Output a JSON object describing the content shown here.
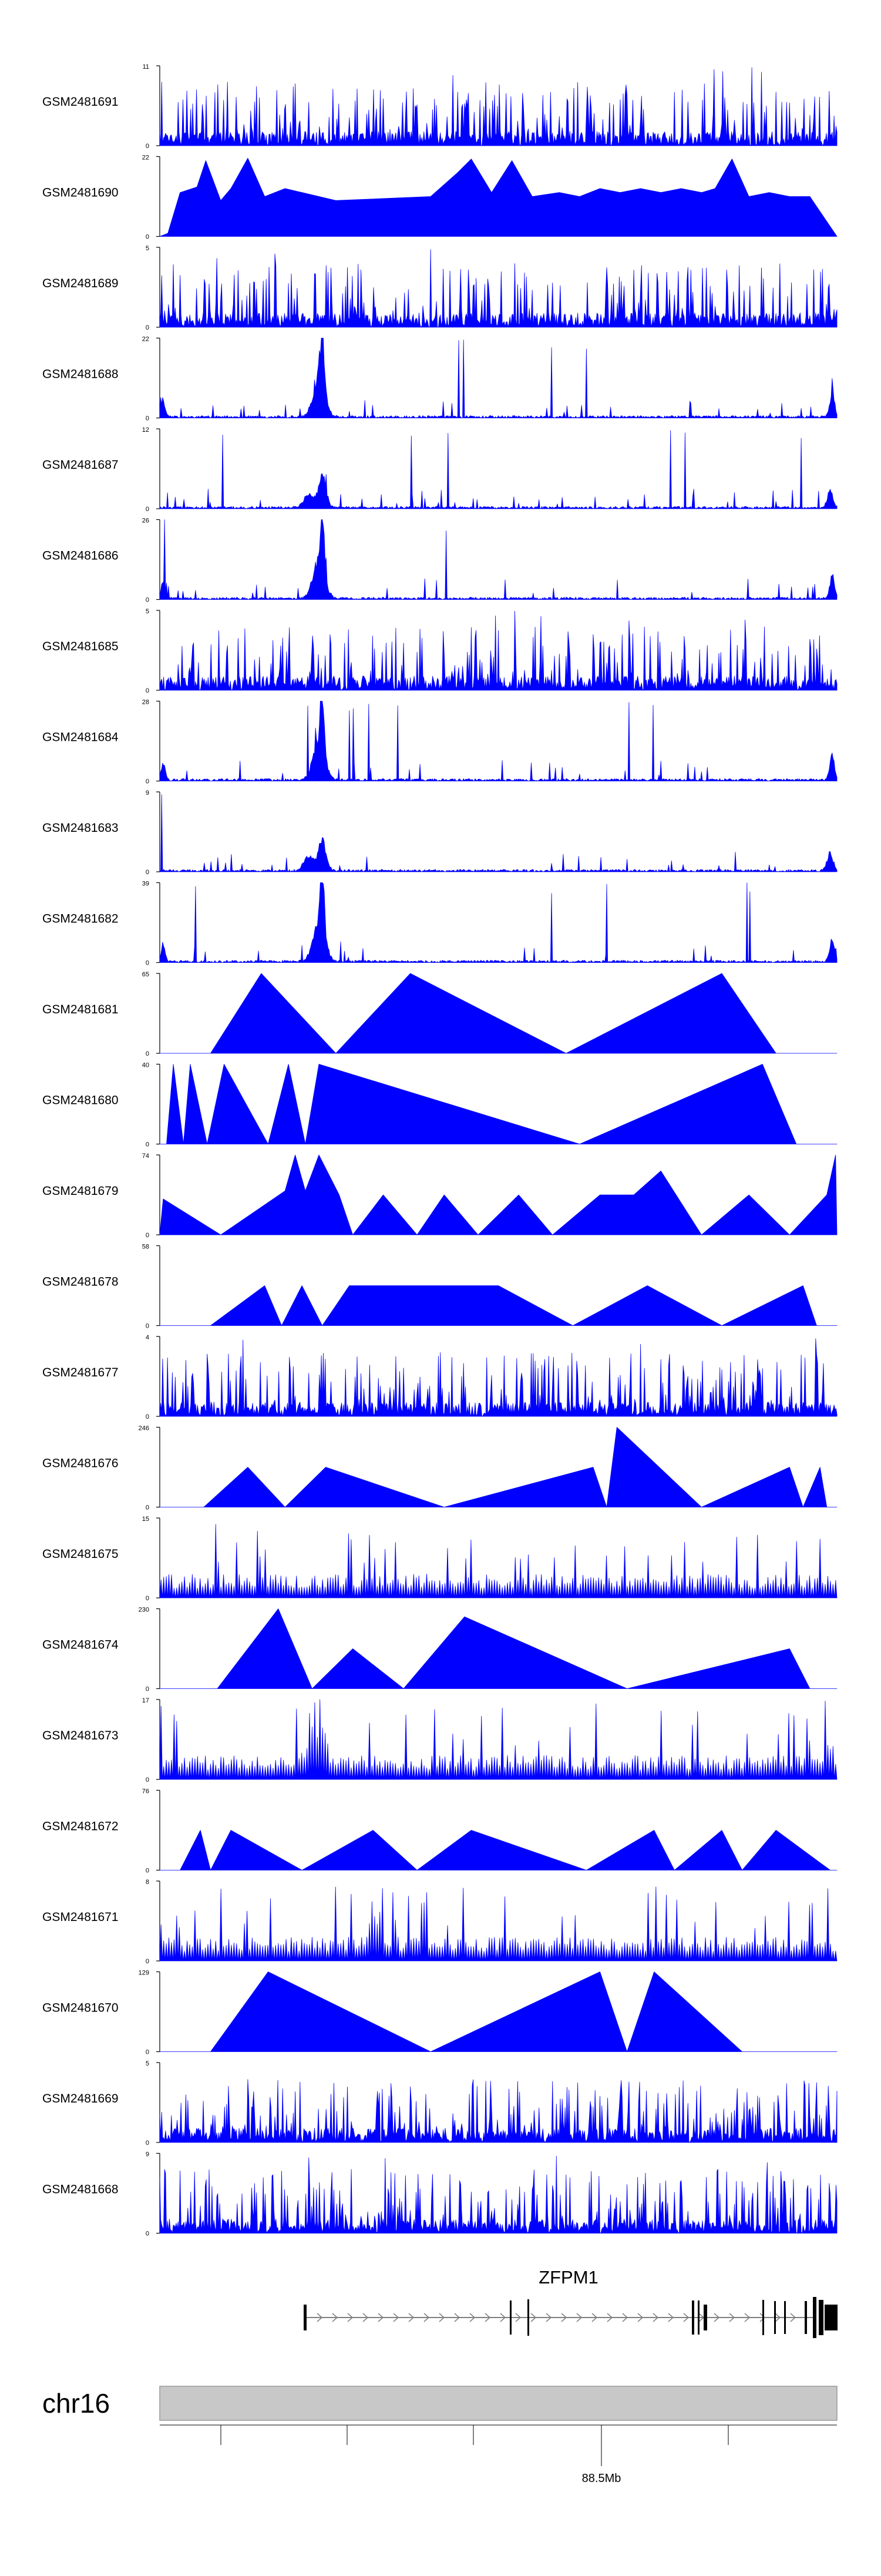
{
  "chart_data": {
    "type": "area",
    "title": "",
    "tracks": [
      {
        "name": "GSM2481691",
        "ymax": 11,
        "ymin": 0,
        "pattern": "dense",
        "seed": 11
      },
      {
        "name": "GSM2481690",
        "ymax": 22,
        "ymin": 0,
        "pattern": "triangles",
        "seed": 12,
        "peaks": [
          [
            0.012,
            0.04
          ],
          [
            0.03,
            0.55
          ],
          [
            0.055,
            0.62
          ],
          [
            0.068,
            0.95
          ],
          [
            0.09,
            0.45
          ],
          [
            0.105,
            0.6
          ],
          [
            0.13,
            0.98
          ],
          [
            0.155,
            0.5
          ],
          [
            0.185,
            0.6
          ],
          [
            0.21,
            0.55
          ],
          [
            0.26,
            0.45
          ],
          [
            0.4,
            0.5
          ],
          [
            0.44,
            0.8
          ],
          [
            0.46,
            0.97
          ],
          [
            0.49,
            0.55
          ],
          [
            0.52,
            0.95
          ],
          [
            0.55,
            0.5
          ],
          [
            0.59,
            0.55
          ],
          [
            0.62,
            0.5
          ],
          [
            0.65,
            0.6
          ],
          [
            0.68,
            0.55
          ],
          [
            0.71,
            0.6
          ],
          [
            0.74,
            0.55
          ],
          [
            0.77,
            0.6
          ],
          [
            0.8,
            0.55
          ],
          [
            0.82,
            0.6
          ],
          [
            0.845,
            0.97
          ],
          [
            0.87,
            0.5
          ],
          [
            0.9,
            0.55
          ],
          [
            0.93,
            0.5
          ],
          [
            0.96,
            0.5
          ]
        ]
      },
      {
        "name": "GSM2481689",
        "ymax": 5,
        "ymin": 0,
        "pattern": "dense",
        "seed": 13
      },
      {
        "name": "GSM2481688",
        "ymax": 22,
        "ymin": 0,
        "pattern": "hot",
        "seed": 14
      },
      {
        "name": "GSM2481687",
        "ymax": 12,
        "ymin": 0,
        "pattern": "hotlow",
        "seed": 15
      },
      {
        "name": "GSM2481686",
        "ymax": 26,
        "ymin": 0,
        "pattern": "hot",
        "seed": 16
      },
      {
        "name": "GSM2481685",
        "ymax": 5,
        "ymin": 0,
        "pattern": "dense",
        "seed": 17
      },
      {
        "name": "GSM2481684",
        "ymax": 28,
        "ymin": 0,
        "pattern": "hot",
        "seed": 18
      },
      {
        "name": "GSM2481683",
        "ymax": 9,
        "ymin": 0,
        "pattern": "hotlow",
        "seed": 19
      },
      {
        "name": "GSM2481682",
        "ymax": 39,
        "ymin": 0,
        "pattern": "hot",
        "seed": 20
      },
      {
        "name": "GSM2481681",
        "ymax": 65,
        "ymin": 0,
        "pattern": "triangles",
        "seed": 21,
        "peaks": [
          [
            0.075,
            0.0
          ],
          [
            0.15,
            1.0
          ],
          [
            0.26,
            0.0
          ],
          [
            0.37,
            1.0
          ],
          [
            0.6,
            0.0
          ],
          [
            0.83,
            1.0
          ],
          [
            0.91,
            0.0
          ]
        ]
      },
      {
        "name": "GSM2481680",
        "ymax": 40,
        "ymin": 0,
        "pattern": "triangles",
        "seed": 22,
        "peaks": [
          [
            0.01,
            0.0
          ],
          [
            0.02,
            1.0
          ],
          [
            0.035,
            0.0
          ],
          [
            0.045,
            1.0
          ],
          [
            0.07,
            0.0
          ],
          [
            0.095,
            1.0
          ],
          [
            0.16,
            0.0
          ],
          [
            0.19,
            1.0
          ],
          [
            0.215,
            0.0
          ],
          [
            0.235,
            1.0
          ],
          [
            0.62,
            0.0
          ],
          [
            0.89,
            1.0
          ],
          [
            0.94,
            0.0
          ]
        ]
      },
      {
        "name": "GSM2481679",
        "ymax": 74,
        "ymin": 0,
        "pattern": "triangles",
        "seed": 23,
        "peaks": [
          [
            0.005,
            0.45
          ],
          [
            0.09,
            0.0
          ],
          [
            0.185,
            0.55
          ],
          [
            0.2,
            1.0
          ],
          [
            0.215,
            0.55
          ],
          [
            0.235,
            1.0
          ],
          [
            0.265,
            0.5
          ],
          [
            0.285,
            0.0
          ],
          [
            0.33,
            0.5
          ],
          [
            0.38,
            0.0
          ],
          [
            0.42,
            0.5
          ],
          [
            0.47,
            0.0
          ],
          [
            0.53,
            0.5
          ],
          [
            0.58,
            0.0
          ],
          [
            0.65,
            0.5
          ],
          [
            0.7,
            0.5
          ],
          [
            0.74,
            0.8
          ],
          [
            0.8,
            0.0
          ],
          [
            0.87,
            0.5
          ],
          [
            0.93,
            0.0
          ],
          [
            0.985,
            0.5
          ],
          [
            0.998,
            1.0
          ]
        ]
      },
      {
        "name": "GSM2481678",
        "ymax": 58,
        "ymin": 0,
        "pattern": "triangles",
        "seed": 24,
        "peaks": [
          [
            0.075,
            0.0
          ],
          [
            0.155,
            0.5
          ],
          [
            0.18,
            0.0
          ],
          [
            0.21,
            0.5
          ],
          [
            0.24,
            0.0
          ],
          [
            0.28,
            0.5
          ],
          [
            0.36,
            0.5
          ],
          [
            0.44,
            0.5
          ],
          [
            0.5,
            0.5
          ],
          [
            0.61,
            0.0
          ],
          [
            0.72,
            0.5
          ],
          [
            0.83,
            0.0
          ],
          [
            0.95,
            0.5
          ],
          [
            0.97,
            0.0
          ]
        ]
      },
      {
        "name": "GSM2481677",
        "ymax": 4,
        "ymin": 0,
        "pattern": "dense",
        "seed": 25
      },
      {
        "name": "GSM2481676",
        "ymax": 246,
        "ymin": 0,
        "pattern": "triangles",
        "seed": 26,
        "peaks": [
          [
            0.065,
            0.0
          ],
          [
            0.13,
            0.5
          ],
          [
            0.185,
            0.0
          ],
          [
            0.245,
            0.5
          ],
          [
            0.42,
            0.0
          ],
          [
            0.64,
            0.5
          ],
          [
            0.66,
            0.0
          ],
          [
            0.675,
            1.0
          ],
          [
            0.8,
            0.0
          ],
          [
            0.93,
            0.5
          ],
          [
            0.95,
            0.0
          ],
          [
            0.975,
            0.5
          ],
          [
            0.985,
            0.0
          ]
        ]
      },
      {
        "name": "GSM2481675",
        "ymax": 15,
        "ymin": 0,
        "pattern": "zigzag",
        "seed": 27
      },
      {
        "name": "GSM2481674",
        "ymax": 230,
        "ymin": 0,
        "pattern": "triangles",
        "seed": 28,
        "peaks": [
          [
            0.085,
            0.0
          ],
          [
            0.175,
            1.0
          ],
          [
            0.225,
            0.0
          ],
          [
            0.285,
            0.5
          ],
          [
            0.36,
            0.0
          ],
          [
            0.45,
            0.9
          ],
          [
            0.69,
            0.0
          ],
          [
            0.93,
            0.5
          ],
          [
            0.96,
            0.0
          ]
        ]
      },
      {
        "name": "GSM2481673",
        "ymax": 17,
        "ymin": 0,
        "pattern": "zigzaghot",
        "seed": 29
      },
      {
        "name": "GSM2481672",
        "ymax": 76,
        "ymin": 0,
        "pattern": "triangles",
        "seed": 30,
        "peaks": [
          [
            0.03,
            0.0
          ],
          [
            0.06,
            0.5
          ],
          [
            0.075,
            0.0
          ],
          [
            0.105,
            0.5
          ],
          [
            0.21,
            0.0
          ],
          [
            0.315,
            0.5
          ],
          [
            0.38,
            0.0
          ],
          [
            0.46,
            0.5
          ],
          [
            0.63,
            0.0
          ],
          [
            0.73,
            0.5
          ],
          [
            0.76,
            0.0
          ],
          [
            0.83,
            0.5
          ],
          [
            0.86,
            0.0
          ],
          [
            0.91,
            0.5
          ],
          [
            0.99,
            0.0
          ]
        ]
      },
      {
        "name": "GSM2481671",
        "ymax": 8,
        "ymin": 0,
        "pattern": "zigzag",
        "seed": 31
      },
      {
        "name": "GSM2481670",
        "ymax": 129,
        "ymin": 0,
        "pattern": "triangles",
        "seed": 32,
        "peaks": [
          [
            0.075,
            0.0
          ],
          [
            0.16,
            1.0
          ],
          [
            0.4,
            0.0
          ],
          [
            0.65,
            1.0
          ],
          [
            0.69,
            0.0
          ],
          [
            0.73,
            1.0
          ],
          [
            0.86,
            0.0
          ]
        ]
      },
      {
        "name": "GSM2481669",
        "ymax": 5,
        "ymin": 0,
        "pattern": "dense",
        "seed": 33
      },
      {
        "name": "GSM2481668",
        "ymax": 9,
        "ymin": 0,
        "pattern": "dense",
        "seed": 34
      }
    ],
    "gene": {
      "name": "ZFPM1"
    },
    "chromosome": "chr16",
    "position_label": "88.5Mb",
    "colors": {
      "signal": "#0000ff",
      "axis": "#000000",
      "ideogram": "#c8c8c8",
      "gene": "#000000",
      "intron": "#7f7f7f"
    }
  }
}
